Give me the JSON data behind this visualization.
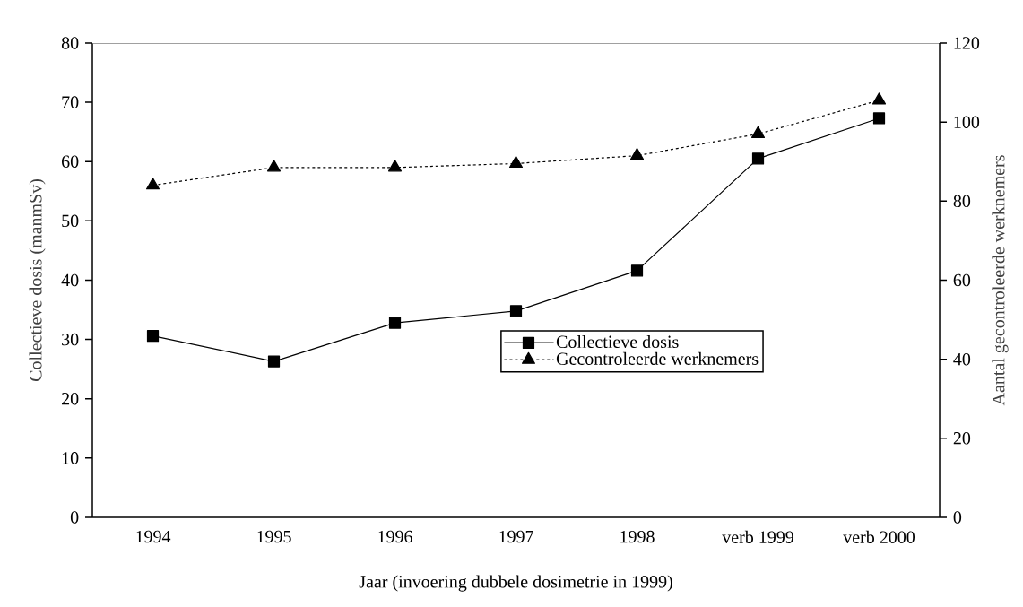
{
  "chart_data": {
    "type": "line",
    "xlabel": "Jaar (invoering dubbele dosimetrie in 1999)",
    "ylabel": "Collectieve dosis (manmSv)",
    "y2label": "Aantal gecontroleerde werknemers",
    "categories": [
      "1994",
      "1995",
      "1996",
      "1997",
      "1998",
      "verb 1999",
      "verb 2000"
    ],
    "series": [
      {
        "name": "Collectieve dosis",
        "color": "#000000",
        "marker": "square",
        "line_style": "solid",
        "values": [
          30.6,
          26.3,
          32.8,
          34.8,
          41.6,
          60.5,
          67.3
        ]
      },
      {
        "name": "Gecontroleerde werknemers",
        "color": "#000000",
        "marker": "triangle",
        "line_style": "dashed",
        "axis": "y2",
        "values": [
          84,
          88.5,
          88.5,
          89.5,
          91.5,
          97,
          105.5
        ]
      }
    ],
    "ylim": [
      0,
      80
    ],
    "yticks": [
      0,
      10,
      20,
      30,
      40,
      50,
      60,
      70,
      80
    ],
    "y2lim": [
      0,
      120
    ],
    "y2ticks": [
      0,
      20,
      40,
      60,
      80,
      100,
      120
    ],
    "grid": false,
    "legend": "center right"
  }
}
